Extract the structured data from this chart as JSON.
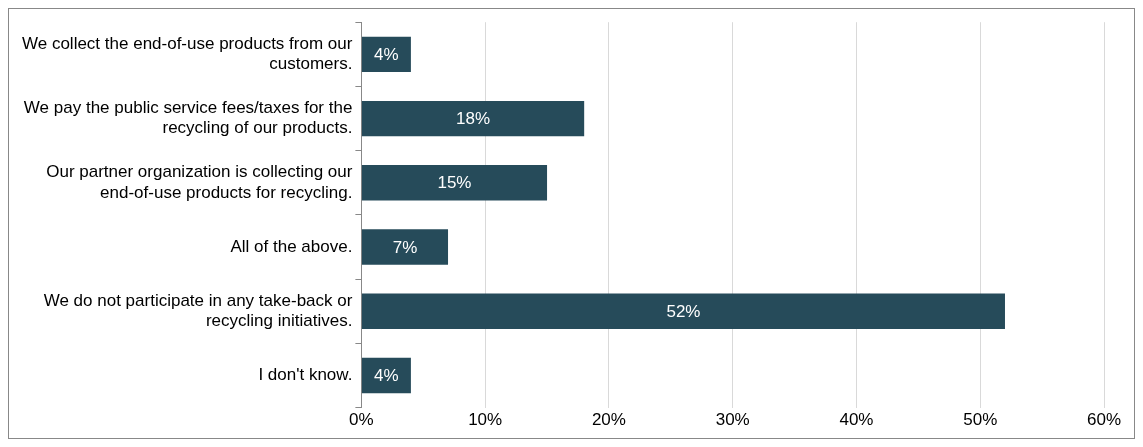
{
  "chart_data": {
    "type": "bar",
    "orientation": "horizontal",
    "categories": [
      "We collect the end-of-use products from our customers.",
      "We pay the public service fees/taxes for the recycling of our products.",
      "Our partner organization is collecting our end-of-use products for recycling.",
      "All of the above.",
      "We do not participate in any take-back or recycling initiatives.",
      "I don't know."
    ],
    "values": [
      4,
      18,
      15,
      7,
      52,
      4
    ],
    "color": "#264b5a",
    "xlim": [
      0,
      60
    ],
    "xticks": [
      {
        "value": 0,
        "label": "0%"
      },
      {
        "value": 10,
        "label": "10%"
      },
      {
        "value": 20,
        "label": "20%"
      },
      {
        "value": 30,
        "label": "30%"
      },
      {
        "value": 40,
        "label": "40%"
      },
      {
        "value": 50,
        "label": "50%"
      },
      {
        "value": 60,
        "label": "60%"
      }
    ],
    "grid": "x",
    "legend": false,
    "value_labels": [
      "4%",
      "18%",
      "15%",
      "7%",
      "52%",
      "4%"
    ]
  }
}
